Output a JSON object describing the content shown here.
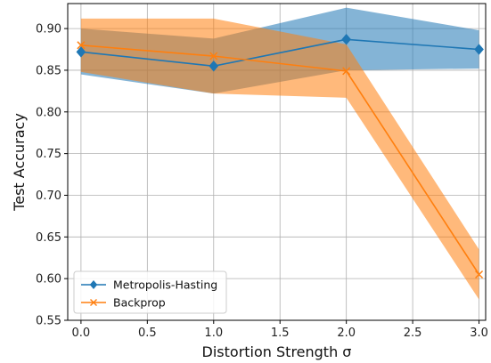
{
  "chart_data": {
    "type": "line",
    "xlabel": "Distortion Strength σ",
    "ylabel": "Test Accuracy",
    "xlim": [
      -0.1,
      3.05
    ],
    "ylim": [
      0.55,
      0.93
    ],
    "xticks": [
      0.0,
      0.5,
      1.0,
      1.5,
      2.0,
      2.5,
      3.0
    ],
    "xtick_labels": [
      "0.0",
      "0.5",
      "1.0",
      "1.5",
      "2.0",
      "2.5",
      "3.0"
    ],
    "yticks": [
      0.55,
      0.6,
      0.65,
      0.7,
      0.75,
      0.8,
      0.85,
      0.9
    ],
    "ytick_labels": [
      "0.55",
      "0.60",
      "0.65",
      "0.70",
      "0.75",
      "0.80",
      "0.85",
      "0.90"
    ],
    "grid": true,
    "legend_position": "lower-left",
    "series": [
      {
        "name": "Metropolis-Hasting",
        "color": "#1f77b4",
        "marker": "diamond",
        "x": [
          0.0,
          1.0,
          2.0,
          3.0
        ],
        "y": [
          0.872,
          0.855,
          0.887,
          0.875
        ],
        "lower": [
          0.845,
          0.822,
          0.85,
          0.852
        ],
        "upper": [
          0.9,
          0.888,
          0.925,
          0.898
        ]
      },
      {
        "name": "Backprop",
        "color": "#ff7f0e",
        "marker": "x",
        "x": [
          0.0,
          1.0,
          2.0,
          3.0
        ],
        "y": [
          0.88,
          0.867,
          0.849,
          0.605
        ],
        "lower": [
          0.848,
          0.822,
          0.817,
          0.575
        ],
        "upper": [
          0.912,
          0.912,
          0.881,
          0.635
        ]
      }
    ]
  }
}
